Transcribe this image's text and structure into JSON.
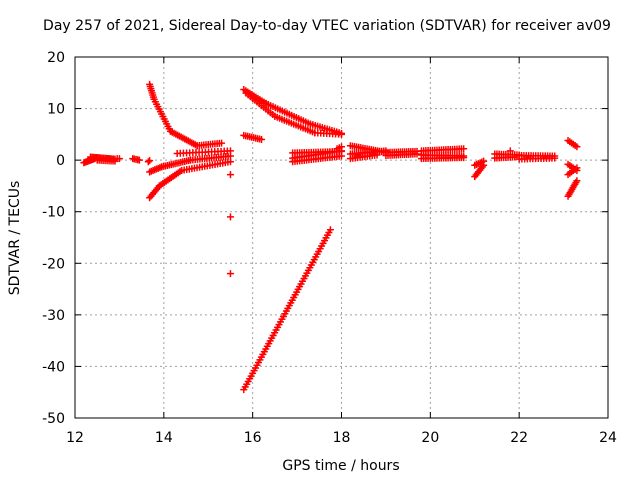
{
  "chart_data": {
    "type": "scatter",
    "title": "Day 257 of 2021, Sidereal Day-to-day VTEC variation (SDTVAR) for receiver av09",
    "xlabel": "GPS time / hours",
    "ylabel": "SDTVAR / TECUs",
    "xlim": [
      12,
      24
    ],
    "ylim": [
      -50,
      20
    ],
    "xticks": [
      12,
      14,
      16,
      18,
      20,
      22,
      24
    ],
    "yticks": [
      -50,
      -40,
      -30,
      -20,
      -10,
      0,
      10,
      20
    ],
    "grid": true,
    "legend": "none",
    "marker": "plus",
    "color": "#ff0000",
    "segments": [
      {
        "x0": 12.2,
        "x1": 12.45,
        "y0": -0.5,
        "y1": 0.3,
        "n": 10
      },
      {
        "x0": 12.35,
        "x1": 12.9,
        "y0": 0.6,
        "y1": 0.2,
        "n": 18
      },
      {
        "x0": 12.5,
        "x1": 12.9,
        "y0": 0.0,
        "y1": -0.2,
        "n": 10
      },
      {
        "x0": 12.95,
        "x1": 13.0,
        "y0": 0.3,
        "y1": 0.3,
        "n": 2
      },
      {
        "x0": 13.3,
        "x1": 13.45,
        "y0": 0.3,
        "y1": 0.0,
        "n": 5
      },
      {
        "x0": 13.65,
        "x1": 13.68,
        "y0": -0.3,
        "y1": -0.1,
        "n": 2
      },
      {
        "x0": 13.68,
        "x1": 13.78,
        "y0": 14.7,
        "y1": 11.8,
        "n": 8
      },
      {
        "x0": 13.78,
        "x1": 14.15,
        "y0": 11.8,
        "y1": 5.6,
        "n": 14
      },
      {
        "x0": 14.15,
        "x1": 14.75,
        "y0": 5.6,
        "y1": 2.8,
        "n": 16
      },
      {
        "x0": 14.75,
        "x1": 15.3,
        "y0": 2.8,
        "y1": 3.3,
        "n": 12
      },
      {
        "x0": 13.68,
        "x1": 13.95,
        "y0": -2.3,
        "y1": -1.3,
        "n": 8
      },
      {
        "x0": 13.95,
        "x1": 14.6,
        "y0": -1.3,
        "y1": 0.0,
        "n": 16
      },
      {
        "x0": 14.6,
        "x1": 15.5,
        "y0": 0.0,
        "y1": 0.8,
        "n": 18
      },
      {
        "x0": 13.68,
        "x1": 13.9,
        "y0": -7.3,
        "y1": -5.0,
        "n": 8
      },
      {
        "x0": 13.9,
        "x1": 14.4,
        "y0": -5.0,
        "y1": -2.0,
        "n": 14
      },
      {
        "x0": 14.4,
        "x1": 15.5,
        "y0": -2.0,
        "y1": -0.3,
        "n": 20
      },
      {
        "x0": 14.3,
        "x1": 15.5,
        "y0": 1.3,
        "y1": 1.8,
        "n": 18
      },
      {
        "x0": 15.5,
        "x1": 15.52,
        "y0": -2.8,
        "y1": -2.8,
        "n": 1
      },
      {
        "x0": 15.5,
        "x1": 15.52,
        "y0": -11.0,
        "y1": -11.0,
        "n": 1
      },
      {
        "x0": 15.5,
        "x1": 15.52,
        "y0": -22.0,
        "y1": -22.0,
        "n": 1
      },
      {
        "x0": 15.8,
        "x1": 16.3,
        "y0": 13.7,
        "y1": 11.0,
        "n": 12
      },
      {
        "x0": 16.3,
        "x1": 17.3,
        "y0": 11.0,
        "y1": 7.0,
        "n": 20
      },
      {
        "x0": 17.3,
        "x1": 18.0,
        "y0": 7.0,
        "y1": 5.2,
        "n": 14
      },
      {
        "x0": 15.85,
        "x1": 16.5,
        "y0": 13.0,
        "y1": 8.5,
        "n": 14
      },
      {
        "x0": 16.5,
        "x1": 17.4,
        "y0": 8.5,
        "y1": 5.3,
        "n": 18
      },
      {
        "x0": 17.4,
        "x1": 18.0,
        "y0": 5.3,
        "y1": 5.0,
        "n": 10
      },
      {
        "x0": 15.8,
        "x1": 16.2,
        "y0": 4.8,
        "y1": 4.0,
        "n": 10
      },
      {
        "x0": 15.8,
        "x1": 17.75,
        "y0": -44.5,
        "y1": -13.5,
        "n": 60
      },
      {
        "x0": 16.9,
        "x1": 18.0,
        "y0": 1.4,
        "y1": 1.7,
        "n": 22
      },
      {
        "x0": 16.9,
        "x1": 18.0,
        "y0": 0.4,
        "y1": 1.8,
        "n": 22
      },
      {
        "x0": 16.9,
        "x1": 18.0,
        "y0": -0.3,
        "y1": 0.8,
        "n": 22
      },
      {
        "x0": 17.9,
        "x1": 18.0,
        "y0": 2.2,
        "y1": 2.6,
        "n": 3
      },
      {
        "x0": 18.2,
        "x1": 19.0,
        "y0": 2.8,
        "y1": 1.5,
        "n": 18
      },
      {
        "x0": 18.2,
        "x1": 19.0,
        "y0": 1.2,
        "y1": 1.8,
        "n": 18
      },
      {
        "x0": 18.2,
        "x1": 18.8,
        "y0": 0.3,
        "y1": 1.0,
        "n": 12
      },
      {
        "x0": 19.0,
        "x1": 19.7,
        "y0": 1.5,
        "y1": 1.7,
        "n": 16
      },
      {
        "x0": 19.0,
        "x1": 19.7,
        "y0": 0.9,
        "y1": 1.2,
        "n": 16
      },
      {
        "x0": 19.8,
        "x1": 20.75,
        "y0": 1.8,
        "y1": 2.2,
        "n": 20
      },
      {
        "x0": 19.8,
        "x1": 20.75,
        "y0": 1.0,
        "y1": 0.8,
        "n": 20
      },
      {
        "x0": 19.8,
        "x1": 20.75,
        "y0": 0.3,
        "y1": 0.5,
        "n": 20
      },
      {
        "x0": 21.0,
        "x1": 21.2,
        "y0": -3.2,
        "y1": -1.0,
        "n": 8
      },
      {
        "x0": 21.0,
        "x1": 21.2,
        "y0": -1.0,
        "y1": -0.2,
        "n": 6
      },
      {
        "x0": 21.45,
        "x1": 22.0,
        "y0": 1.2,
        "y1": 1.0,
        "n": 12
      },
      {
        "x0": 21.45,
        "x1": 21.9,
        "y0": 0.4,
        "y1": 0.6,
        "n": 10
      },
      {
        "x0": 21.8,
        "x1": 21.82,
        "y0": 1.8,
        "y1": 1.8,
        "n": 1
      },
      {
        "x0": 22.0,
        "x1": 22.8,
        "y0": 0.9,
        "y1": 0.8,
        "n": 16
      },
      {
        "x0": 22.0,
        "x1": 22.8,
        "y0": 0.2,
        "y1": 0.4,
        "n": 14
      },
      {
        "x0": 23.1,
        "x1": 23.3,
        "y0": 3.8,
        "y1": 2.6,
        "n": 6
      },
      {
        "x0": 23.1,
        "x1": 23.3,
        "y0": -0.8,
        "y1": -2.0,
        "n": 6
      },
      {
        "x0": 23.1,
        "x1": 23.3,
        "y0": -2.8,
        "y1": -1.5,
        "n": 6
      },
      {
        "x0": 23.1,
        "x1": 23.3,
        "y0": -7.0,
        "y1": -4.0,
        "n": 10
      }
    ]
  }
}
